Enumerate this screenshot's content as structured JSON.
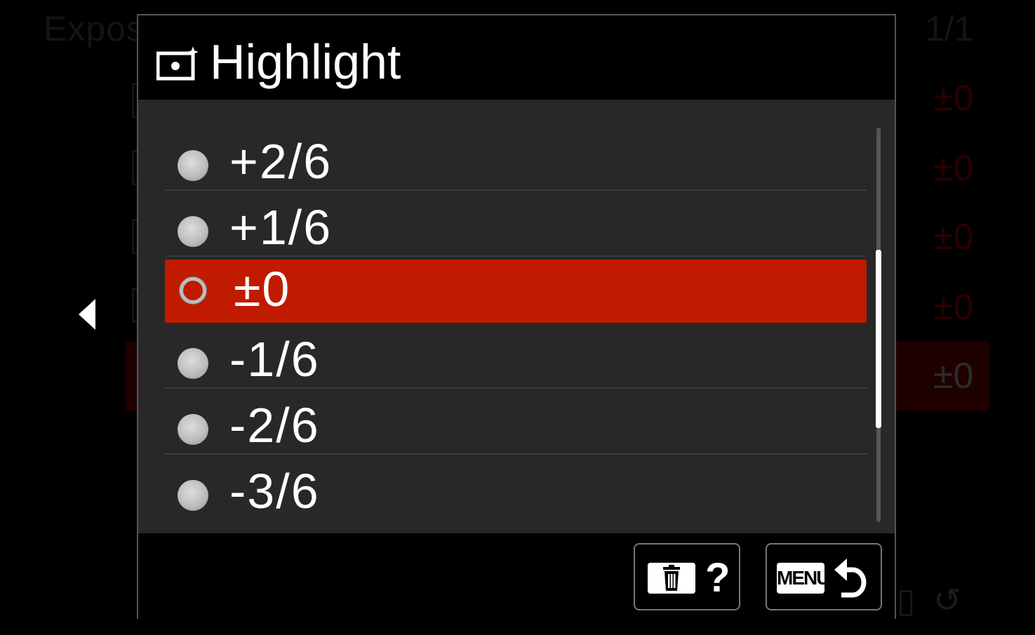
{
  "background": {
    "title": "Expos",
    "page_indicator": "1/1",
    "values": [
      "±0",
      "±0",
      "±0",
      "±0"
    ],
    "selected_value": "±0"
  },
  "dialog": {
    "title": "Highlight",
    "title_icon": "highlight-adjust-icon",
    "options": [
      {
        "label": "+2/6",
        "selected": false
      },
      {
        "label": "+1/6",
        "selected": false
      },
      {
        "label": "±0",
        "selected": true
      },
      {
        "label": "-1/6",
        "selected": false
      },
      {
        "label": "-2/6",
        "selected": false
      },
      {
        "label": "-3/6",
        "selected": false
      }
    ],
    "footer": {
      "help_button": {
        "icon": "trash-icon",
        "label": "?"
      },
      "back_button": {
        "icon_label": "MENU",
        "icon": "return-arrow-icon"
      }
    }
  },
  "colors": {
    "selected": "#c01b00",
    "list_bg": "#282828",
    "background": "#000000"
  }
}
